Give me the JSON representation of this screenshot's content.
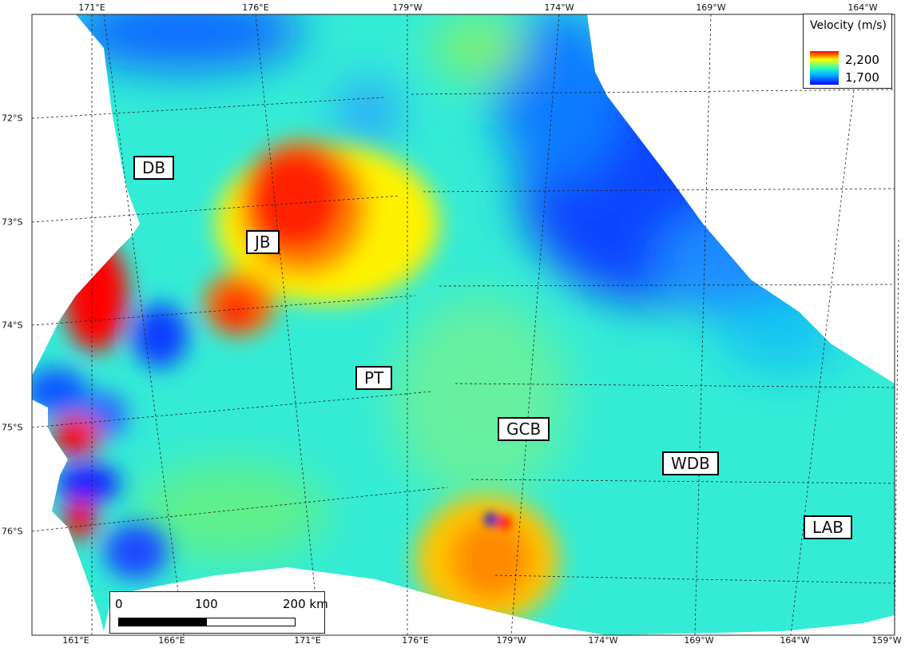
{
  "map": {
    "legend": {
      "title": "Velocity (m/s)",
      "max_label": "2,200",
      "min_label": "1,700",
      "colors": [
        "#ff0000",
        "#ffff00",
        "#2effb5",
        "#00b7ff",
        "#0000ff"
      ]
    },
    "scale_bar": {
      "labels": [
        "0",
        "100",
        "200 km"
      ]
    },
    "top_ticks": [
      "171°E",
      "176°E",
      "179°W",
      "174°W",
      "169°W",
      "164°W"
    ],
    "bottom_ticks": [
      "161°E",
      "166°E",
      "171°E",
      "176°E",
      "179°W",
      "174°W",
      "169°W",
      "164°W",
      "159°W"
    ],
    "left_ticks": [
      "72°S",
      "73°S",
      "74°S",
      "75°S",
      "76°S"
    ],
    "regions": [
      "DB",
      "JB",
      "PT",
      "GCB",
      "WDB",
      "LAB"
    ],
    "velocity_range": [
      1700,
      2200
    ]
  }
}
